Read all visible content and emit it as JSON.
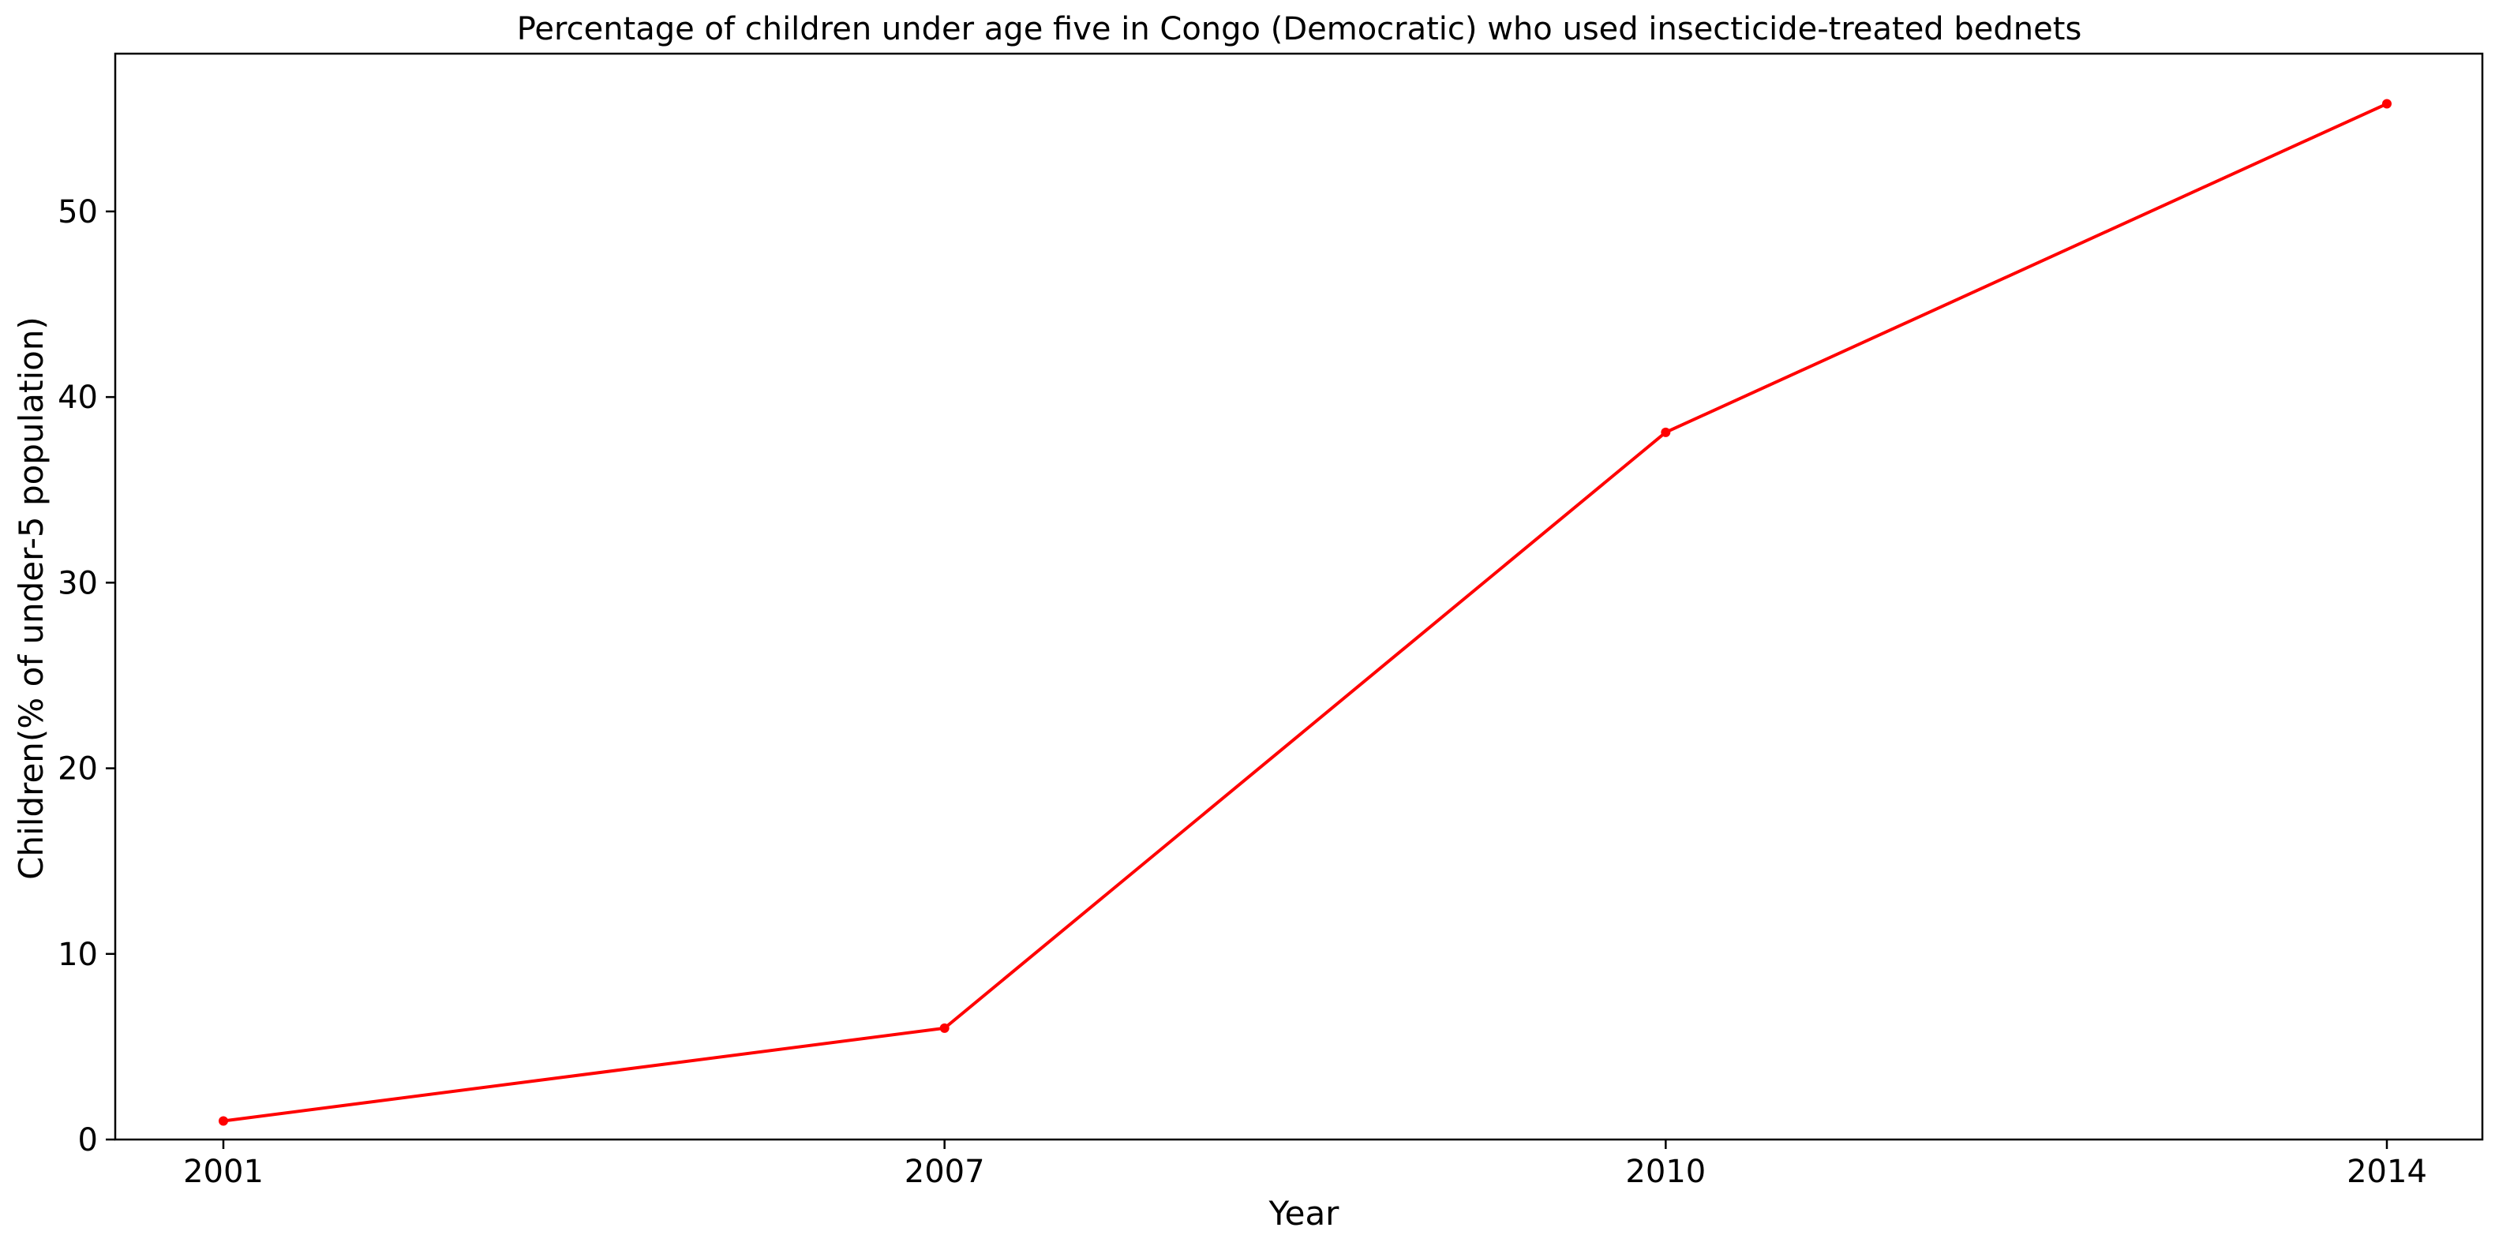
{
  "chart_data": {
    "type": "line",
    "title": "Percentage of children under age five in Congo (Democratic) who used insecticide-treated bednets",
    "xlabel": "Year",
    "ylabel": "Children(% of under-5 population)",
    "categories": [
      "2001",
      "2007",
      "2010",
      "2014"
    ],
    "values": [
      1.0,
      6.0,
      38.1,
      55.8
    ],
    "ylim": [
      0,
      58.5
    ],
    "yticks": [
      0,
      10,
      20,
      30,
      40,
      50
    ],
    "grid": false,
    "line_color": "#ff0000",
    "marker": "circle"
  }
}
